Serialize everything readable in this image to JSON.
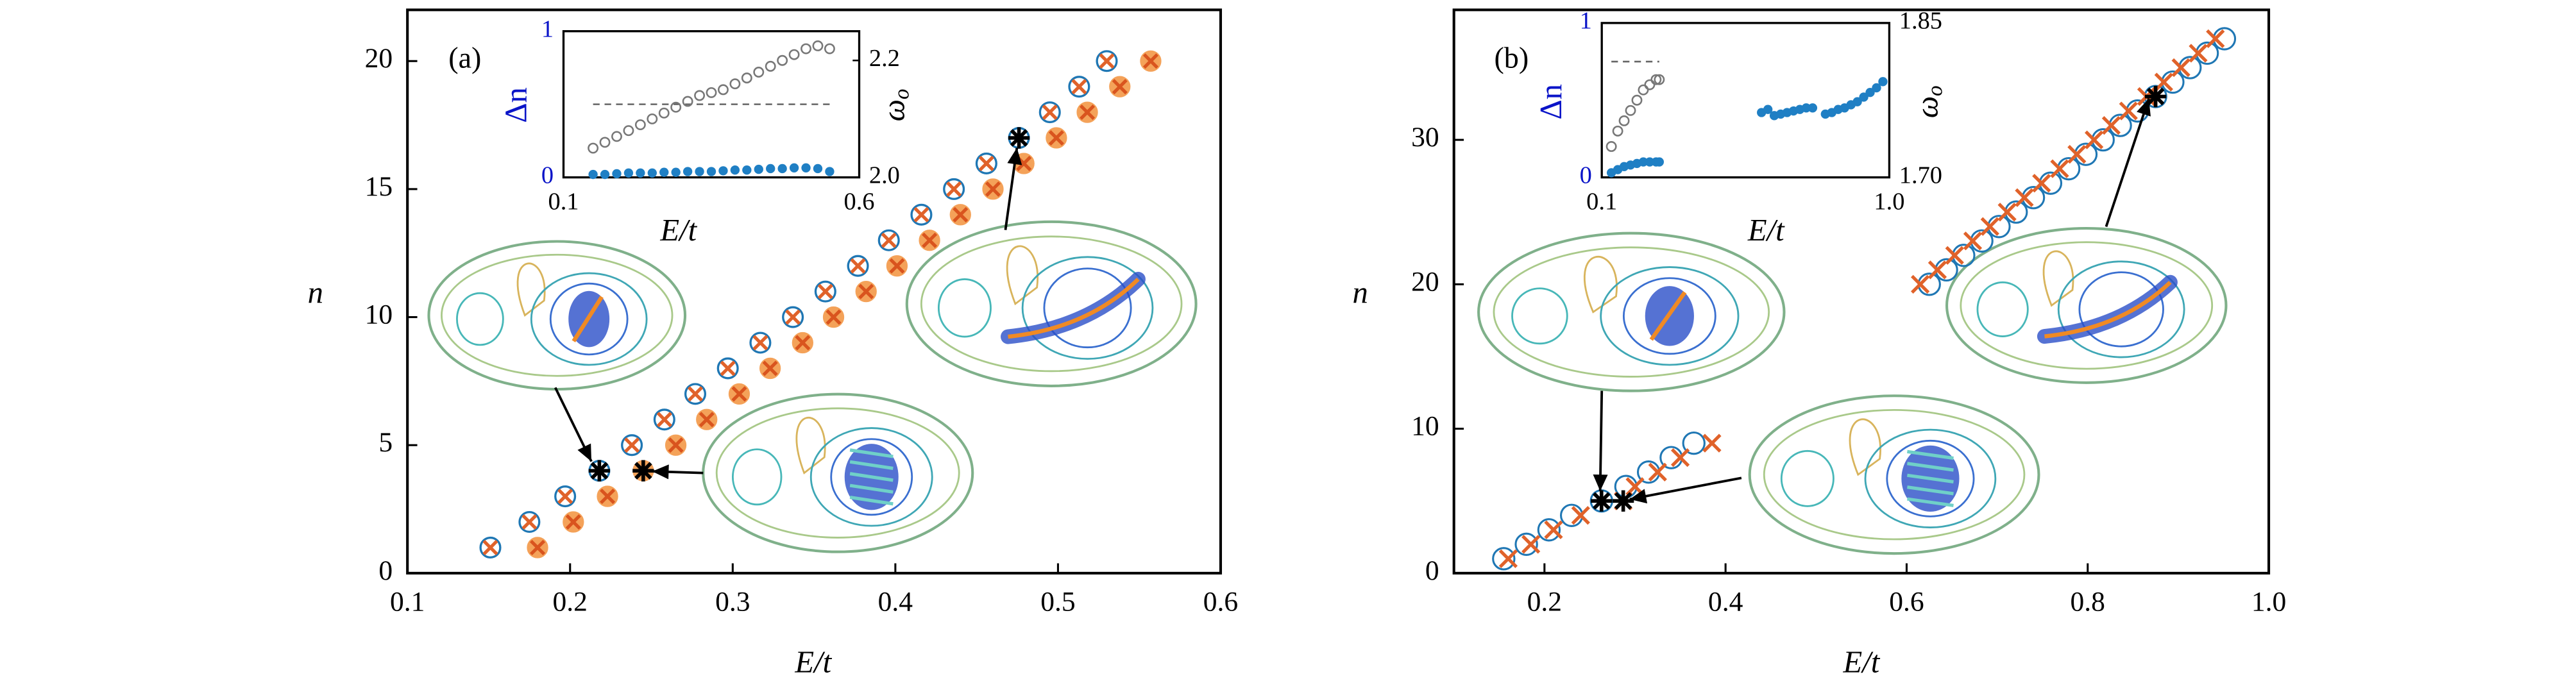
{
  "chart_data": [
    {
      "type": "scatter",
      "panel_label": "(a)",
      "xlabel": "E/t",
      "ylabel": "n",
      "xlim": [
        0.1,
        0.6
      ],
      "xticks": [
        0.1,
        0.2,
        0.3,
        0.4,
        0.5,
        0.6
      ],
      "ylim": [
        0,
        22
      ],
      "yticks": [
        0,
        5,
        10,
        15,
        20
      ],
      "series": [
        {
          "marker": "circle-cross",
          "color": "#1f77b4",
          "cross_color": "#e0622a",
          "x": [
            0.151,
            0.175,
            0.197,
            0.218,
            0.238,
            0.258,
            0.277,
            0.297,
            0.317,
            0.337,
            0.357,
            0.377,
            0.396,
            0.416,
            0.436,
            0.456,
            0.476,
            0.495,
            0.513,
            0.53
          ],
          "values": [
            1,
            2,
            3,
            4,
            5,
            6,
            7,
            8,
            9,
            10,
            11,
            12,
            13,
            14,
            15,
            16,
            17,
            18,
            19,
            20
          ]
        },
        {
          "marker": "filled-cross",
          "color": "#f4a259",
          "cross_color": "#d9541e",
          "x": [
            0.18,
            0.202,
            0.223,
            0.245,
            0.265,
            0.284,
            0.304,
            0.323,
            0.343,
            0.362,
            0.382,
            0.401,
            0.421,
            0.44,
            0.46,
            0.479,
            0.499,
            0.518,
            0.538,
            0.557
          ],
          "values": [
            1,
            2,
            3,
            4,
            5,
            6,
            7,
            8,
            9,
            10,
            11,
            12,
            13,
            14,
            15,
            16,
            17,
            18,
            19,
            20
          ]
        },
        {
          "marker": "star",
          "color": "#000000",
          "x": [
            0.218,
            0.245,
            0.476
          ],
          "values": [
            4,
            4,
            17
          ]
        }
      ],
      "inset": {
        "type": "scatter",
        "xlabel": "E/t",
        "ylabel": "Δn",
        "y2label": "ω",
        "y2label_sub": "o",
        "xlim": [
          0.1,
          0.6
        ],
        "xticks": [
          0.1,
          0.6
        ],
        "ylim": [
          0,
          1
        ],
        "yticks": [
          0,
          1
        ],
        "ytick_color": "#0a14c8",
        "y2lim": [
          2.0,
          2.25
        ],
        "y2ticks": [
          {
            "value": 2.0,
            "label": "2.0"
          },
          2.2
        ],
        "hline": {
          "y": 0.5,
          "x": [
            0.15,
            0.55
          ],
          "color": "#666666"
        },
        "series": [
          {
            "marker": "dot",
            "color": "#1f7fc4",
            "axis": "y",
            "x": [
              0.15,
              0.17,
              0.19,
              0.21,
              0.23,
              0.25,
              0.27,
              0.29,
              0.31,
              0.33,
              0.35,
              0.37,
              0.39,
              0.41,
              0.43,
              0.45,
              0.47,
              0.49,
              0.51,
              0.53,
              0.55
            ],
            "values": [
              0.02,
              0.02,
              0.025,
              0.03,
              0.03,
              0.03,
              0.035,
              0.035,
              0.04,
              0.04,
              0.04,
              0.045,
              0.05,
              0.05,
              0.055,
              0.06,
              0.06,
              0.065,
              0.065,
              0.06,
              0.04
            ]
          },
          {
            "marker": "open",
            "color": "#777777",
            "axis": "y2",
            "x": [
              0.15,
              0.17,
              0.19,
              0.21,
              0.23,
              0.25,
              0.27,
              0.29,
              0.31,
              0.33,
              0.35,
              0.37,
              0.39,
              0.41,
              0.43,
              0.45,
              0.47,
              0.49,
              0.51,
              0.53,
              0.55
            ],
            "values": [
              2.05,
              2.06,
              2.07,
              2.08,
              2.09,
              2.1,
              2.11,
              2.12,
              2.13,
              2.14,
              2.145,
              2.15,
              2.16,
              2.17,
              2.18,
              2.19,
              2.2,
              2.21,
              2.22,
              2.225,
              2.22
            ]
          }
        ]
      }
    },
    {
      "type": "scatter",
      "panel_label": "(b)",
      "xlabel": "E/t",
      "ylabel": "n",
      "xlim": [
        0.1,
        1.0
      ],
      "xticks": [
        0.2,
        0.4,
        0.6,
        0.8,
        {
          "value": 1.0,
          "label": "1.0"
        }
      ],
      "ylim": [
        0,
        39
      ],
      "yticks": [
        0,
        10,
        20,
        30
      ],
      "series": [
        {
          "marker": "circle",
          "color": "#1f77b4",
          "x": [
            0.155,
            0.18,
            0.205,
            0.23,
            0.263,
            0.29,
            0.315,
            0.34,
            0.365,
            0.625,
            0.644,
            0.663,
            0.683,
            0.702,
            0.721,
            0.74,
            0.759,
            0.779,
            0.798,
            0.817,
            0.836,
            0.855,
            0.875,
            0.894,
            0.913,
            0.932,
            0.951
          ],
          "values": [
            1,
            2,
            3,
            4,
            5,
            6,
            7,
            8,
            9,
            20,
            21,
            22,
            23,
            24,
            25,
            26,
            27,
            28,
            29,
            30,
            31,
            32,
            33,
            34,
            35,
            36,
            37
          ]
        },
        {
          "marker": "cross",
          "color": "#e0622a",
          "x": [
            0.16,
            0.185,
            0.21,
            0.24,
            0.287,
            0.3,
            0.325,
            0.35,
            0.385,
            0.615,
            0.634,
            0.653,
            0.673,
            0.692,
            0.711,
            0.73,
            0.749,
            0.769,
            0.788,
            0.807,
            0.826,
            0.845,
            0.865,
            0.884,
            0.903,
            0.922,
            0.941
          ],
          "values": [
            1,
            2,
            3,
            4,
            5,
            6,
            7,
            8,
            9,
            20,
            21,
            22,
            23,
            24,
            25,
            26,
            27,
            28,
            29,
            30,
            31,
            32,
            33,
            34,
            35,
            36,
            37
          ]
        },
        {
          "marker": "star",
          "color": "#000000",
          "x": [
            0.263,
            0.287,
            0.875
          ],
          "values": [
            5,
            5,
            33
          ]
        }
      ],
      "inset": {
        "type": "scatter",
        "xlabel": "E/t",
        "ylabel": "Δn",
        "y2label": "ω",
        "y2label_sub": "o",
        "xlim": [
          0.1,
          1.0
        ],
        "xticks": [
          0.1,
          {
            "value": 1.0,
            "label": "1.0"
          }
        ],
        "ylim": [
          0,
          1
        ],
        "yticks": [
          0,
          1
        ],
        "ytick_color": "#0a14c8",
        "y2lim": [
          1.7,
          1.85
        ],
        "y2ticks": [
          {
            "value": 1.7,
            "label": "1.70"
          },
          1.85
        ],
        "hline": {
          "y": 0.75,
          "x": [
            0.13,
            0.28
          ],
          "color": "#666666"
        },
        "series": [
          {
            "marker": "dot",
            "color": "#1f7fc4",
            "axis": "y",
            "x": [
              0.13,
              0.15,
              0.17,
              0.19,
              0.21,
              0.23,
              0.25,
              0.27,
              0.28,
              0.6,
              0.62,
              0.64,
              0.66,
              0.68,
              0.7,
              0.72,
              0.74,
              0.76,
              0.8,
              0.82,
              0.84,
              0.86,
              0.88,
              0.9,
              0.92,
              0.94,
              0.96,
              0.98
            ],
            "values": [
              0.03,
              0.05,
              0.07,
              0.08,
              0.09,
              0.1,
              0.1,
              0.1,
              0.1,
              0.42,
              0.44,
              0.4,
              0.41,
              0.42,
              0.43,
              0.44,
              0.45,
              0.45,
              0.41,
              0.42,
              0.44,
              0.45,
              0.47,
              0.49,
              0.52,
              0.55,
              0.58,
              0.62
            ]
          },
          {
            "marker": "open",
            "color": "#777777",
            "axis": "y2",
            "x": [
              0.13,
              0.15,
              0.17,
              0.19,
              0.21,
              0.23,
              0.25,
              0.27,
              0.28
            ],
            "values": [
              1.73,
              1.745,
              1.755,
              1.765,
              1.775,
              1.785,
              1.79,
              1.795,
              1.795
            ]
          }
        ]
      }
    }
  ]
}
